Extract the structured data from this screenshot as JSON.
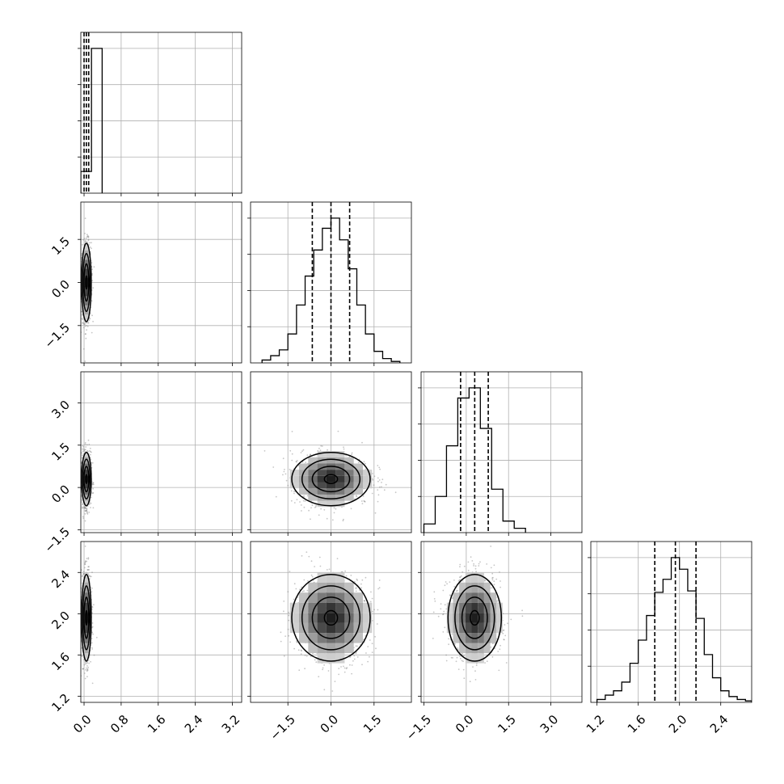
{
  "chart_data": {
    "type": "corner",
    "title": "",
    "style": {
      "grid": true,
      "line_color": "#000000",
      "grid_color": "#b0b0b0",
      "scatter_color": "#808080"
    },
    "params": [
      {
        "range": [
          -0.07,
          3.4
        ],
        "ticks": [
          0.0,
          0.8,
          1.6,
          2.4,
          3.2
        ],
        "tick_labels": [
          "0.0",
          "0.8",
          "1.6",
          "2.4",
          "3.2"
        ]
      },
      {
        "range": [
          -2.8,
          2.8
        ],
        "ticks": [
          -1.5,
          0.0,
          1.5
        ],
        "tick_labels": [
          "−1.5",
          "0.0",
          "1.5"
        ]
      },
      {
        "range": [
          -1.6,
          4.1
        ],
        "ticks": [
          -1.5,
          0.0,
          1.5,
          3.0
        ],
        "tick_labels": [
          "−1.5",
          "0.0",
          "1.5",
          "3.0"
        ]
      },
      {
        "range": [
          1.14,
          2.7
        ],
        "ticks": [
          1.2,
          1.6,
          2.0,
          2.4
        ],
        "tick_labels": [
          "1.2",
          "1.6",
          "2.0",
          "2.4"
        ]
      }
    ],
    "posteriors": [
      {
        "mean": 0.05,
        "std": 0.05
      },
      {
        "mean": 0.0,
        "std": 0.65
      },
      {
        "mean": 0.3,
        "std": 0.45
      },
      {
        "mean": 1.96,
        "std": 0.2
      }
    ],
    "histograms": [
      {
        "bins": [
          -0.07,
          0.16,
          0.39
        ],
        "counts": [
          0.15,
          1.0
        ]
      },
      {
        "bins": [
          -2.4,
          -2.1,
          -1.8,
          -1.5,
          -1.2,
          -0.9,
          -0.6,
          -0.3,
          0.0,
          0.3,
          0.6,
          0.9,
          1.2,
          1.5,
          1.8,
          2.1,
          2.4
        ],
        "counts": [
          0.02,
          0.05,
          0.09,
          0.2,
          0.4,
          0.6,
          0.78,
          0.93,
          1.0,
          0.85,
          0.65,
          0.4,
          0.2,
          0.08,
          0.03,
          0.01
        ]
      },
      {
        "bins": [
          -1.5,
          -1.1,
          -0.7,
          -0.3,
          0.1,
          0.5,
          0.9,
          1.3,
          1.7,
          2.1
        ],
        "counts": [
          0.06,
          0.25,
          0.6,
          0.93,
          1.0,
          0.72,
          0.3,
          0.08,
          0.03
        ]
      },
      {
        "bins": [
          1.2,
          1.28,
          1.36,
          1.44,
          1.52,
          1.6,
          1.68,
          1.76,
          1.84,
          1.92,
          2.0,
          2.08,
          2.16,
          2.24,
          2.32,
          2.4,
          2.48,
          2.56,
          2.64,
          2.7
        ],
        "counts": [
          0.02,
          0.05,
          0.08,
          0.14,
          0.27,
          0.43,
          0.6,
          0.76,
          0.85,
          1.0,
          0.92,
          0.77,
          0.58,
          0.33,
          0.17,
          0.08,
          0.04,
          0.02,
          0.01
        ]
      }
    ],
    "quantiles": [
      [
        0.0,
        0.05,
        0.1
      ],
      [
        -0.65,
        0.0,
        0.65
      ],
      [
        -0.2,
        0.3,
        0.78
      ],
      [
        1.76,
        1.96,
        2.16
      ]
    ]
  }
}
